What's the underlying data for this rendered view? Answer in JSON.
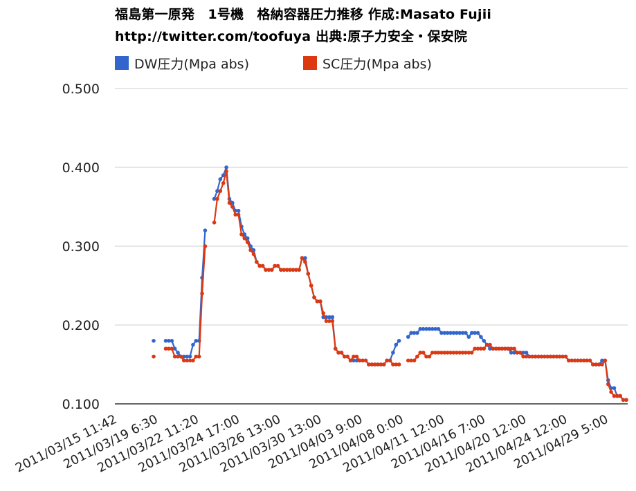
{
  "title_line1": "福島第一原発　1号機　格納容器圧力推移 作成:Masato Fujii",
  "title_line2": "http://twitter.com/toofuya 出典:原子力安全・保安院",
  "chart_data": {
    "type": "line",
    "title": "福島第一原発　1号機　格納容器圧力推移 作成:Masato Fujii http://twitter.com/toofuya 出典:原子力安全・保安院",
    "ylim": [
      0.1,
      0.5
    ],
    "yticks": [
      "0.100",
      "0.200",
      "0.300",
      "0.400",
      "0.500"
    ],
    "grid": true,
    "legend_position": "top",
    "x_tick_labels": [
      "2011/03/15 11:42",
      "2011/03/19 6:30",
      "2011/03/22 11:20",
      "2011/03/24 17:00",
      "2011/03/26 13:00",
      "2011/03/30 13:00",
      "2011/04/03 9:00",
      "2011/04/08 0:00",
      "2011/04/11 12:00",
      "2011/04/16 7:00",
      "2011/04/20 12:00",
      "2011/04/24 12:00",
      "2011/04/29 5:00"
    ],
    "series": [
      {
        "name": "DW圧力(Mpa abs)",
        "color": "#3366cc",
        "values": [
          0.18,
          null,
          null,
          null,
          0.18,
          0.18,
          0.18,
          0.17,
          0.165,
          0.16,
          0.16,
          0.16,
          0.16,
          0.175,
          0.18,
          0.18,
          0.26,
          0.32,
          null,
          null,
          0.36,
          0.37,
          0.385,
          0.39,
          0.4,
          0.36,
          0.355,
          0.345,
          0.345,
          0.325,
          0.315,
          0.31,
          0.3,
          0.295,
          0.28,
          0.275,
          0.275,
          0.27,
          0.27,
          0.27,
          0.275,
          0.275,
          0.27,
          0.27,
          0.27,
          0.27,
          0.27,
          0.27,
          0.27,
          0.285,
          0.285,
          0.265,
          0.25,
          0.235,
          0.23,
          0.23,
          0.21,
          0.21,
          0.21,
          0.21,
          0.17,
          0.165,
          0.165,
          0.16,
          0.16,
          0.155,
          0.155,
          0.155,
          0.155,
          0.155,
          0.155,
          0.15,
          0.15,
          0.15,
          0.15,
          0.15,
          0.15,
          0.155,
          0.155,
          0.165,
          0.175,
          0.18,
          null,
          null,
          0.185,
          0.19,
          0.19,
          0.19,
          0.195,
          0.195,
          0.195,
          0.195,
          0.195,
          0.195,
          0.195,
          0.19,
          0.19,
          0.19,
          0.19,
          0.19,
          0.19,
          0.19,
          0.19,
          0.19,
          0.185,
          0.19,
          0.19,
          0.19,
          0.185,
          0.18,
          0.175,
          0.17,
          0.17,
          0.17,
          0.17,
          0.17,
          0.17,
          0.17,
          0.165,
          0.165,
          0.165,
          0.165,
          0.165,
          0.165,
          0.16,
          0.16,
          0.16,
          0.16,
          0.16,
          0.16,
          0.16,
          0.16,
          0.16,
          0.16,
          0.16,
          0.16,
          0.16,
          0.155,
          0.155,
          0.155,
          0.155,
          0.155,
          0.155,
          0.155,
          0.155,
          0.15,
          0.15,
          0.15,
          0.155,
          0.155,
          0.13,
          0.12,
          0.12,
          0.11,
          0.11,
          0.105,
          0.105
        ]
      },
      {
        "name": "SC圧力(Mpa abs)",
        "color": "#dc3912",
        "values": [
          0.16,
          null,
          null,
          null,
          0.17,
          0.17,
          0.17,
          0.16,
          0.16,
          0.16,
          0.155,
          0.155,
          0.155,
          0.155,
          0.16,
          0.16,
          0.24,
          0.3,
          null,
          null,
          0.33,
          0.36,
          0.37,
          0.38,
          0.395,
          0.355,
          0.35,
          0.34,
          0.34,
          0.315,
          0.31,
          0.305,
          0.295,
          0.29,
          0.28,
          0.275,
          0.275,
          0.27,
          0.27,
          0.27,
          0.275,
          0.275,
          0.27,
          0.27,
          0.27,
          0.27,
          0.27,
          0.27,
          0.27,
          0.285,
          0.28,
          0.265,
          0.25,
          0.235,
          0.23,
          0.23,
          0.215,
          0.205,
          0.205,
          0.205,
          0.17,
          0.165,
          0.165,
          0.16,
          0.16,
          0.155,
          0.16,
          0.16,
          0.155,
          0.155,
          0.155,
          0.15,
          0.15,
          0.15,
          0.15,
          0.15,
          0.15,
          0.155,
          0.155,
          0.15,
          0.15,
          0.15,
          null,
          null,
          0.155,
          0.155,
          0.155,
          0.16,
          0.165,
          0.165,
          0.16,
          0.16,
          0.165,
          0.165,
          0.165,
          0.165,
          0.165,
          0.165,
          0.165,
          0.165,
          0.165,
          0.165,
          0.165,
          0.165,
          0.165,
          0.165,
          0.17,
          0.17,
          0.17,
          0.17,
          0.175,
          0.175,
          0.17,
          0.17,
          0.17,
          0.17,
          0.17,
          0.17,
          0.17,
          0.17,
          0.165,
          0.165,
          0.16,
          0.16,
          0.16,
          0.16,
          0.16,
          0.16,
          0.16,
          0.16,
          0.16,
          0.16,
          0.16,
          0.16,
          0.16,
          0.16,
          0.16,
          0.155,
          0.155,
          0.155,
          0.155,
          0.155,
          0.155,
          0.155,
          0.155,
          0.15,
          0.15,
          0.15,
          0.15,
          0.155,
          0.125,
          0.115,
          0.11,
          0.11,
          0.11,
          0.105,
          0.105
        ]
      }
    ]
  }
}
